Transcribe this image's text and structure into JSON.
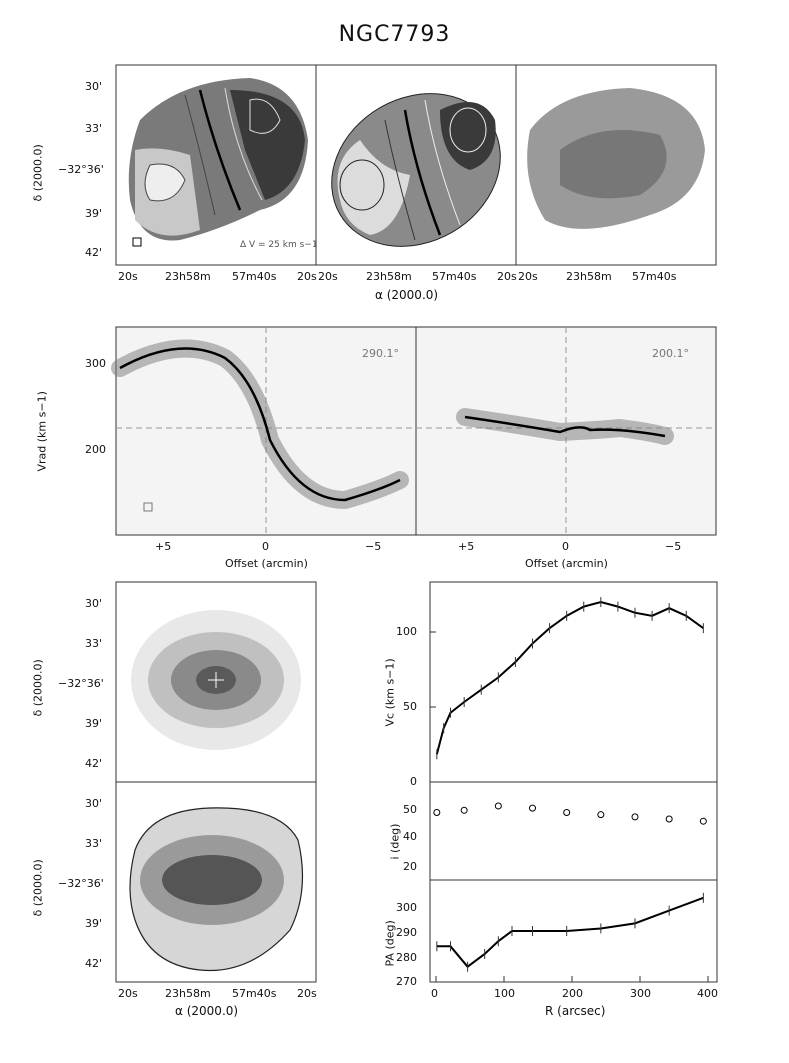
{
  "figure": {
    "title": "NGC7793"
  },
  "top_row": {
    "y_label": "δ (2000.0)",
    "x_label": "α (2000.0)",
    "y_ticks": [
      "30'",
      "33'",
      "−32°36'",
      "39'",
      "42'"
    ],
    "x_ticks_left": [
      "20s",
      "23h58m",
      "57m40s",
      "20s"
    ],
    "x_ticks_mid": [
      "20s",
      "23h58m",
      "57m40s",
      "20s"
    ],
    "x_ticks_right": [
      "20s",
      "23h58m",
      "57m40s"
    ],
    "contour_note": "Δ V = 25 km s−1"
  },
  "pv_row": {
    "y_label": "Vrad (km s−1)",
    "x_label_left": "Offset (arcmin)",
    "x_label_right": "Offset (arcmin)",
    "y_ticks": [
      "300",
      "200"
    ],
    "x_ticks": [
      "+5",
      "0",
      "−5"
    ],
    "angle_left": "290.1°",
    "angle_right": "200.1°"
  },
  "bottom_left": {
    "y_label_top": "δ (2000.0)",
    "y_label_bottom": "δ (2000.0)",
    "x_label": "α (2000.0)",
    "y_ticks": [
      "30'",
      "33'",
      "−32°36'",
      "39'",
      "42'"
    ],
    "x_ticks": [
      "20s",
      "23h58m",
      "57m40s",
      "20s"
    ]
  },
  "chart_data": [
    {
      "type": "line",
      "panel": "rotation-curve",
      "ylabel": "Vc (km s−1)",
      "xlim": [
        0,
        420
      ],
      "ylim": [
        0,
        130
      ],
      "y_ticks": [
        "0",
        "50",
        "100"
      ],
      "x": [
        10,
        20,
        30,
        50,
        75,
        100,
        125,
        150,
        175,
        200,
        225,
        250,
        275,
        300,
        325,
        350,
        375,
        400
      ],
      "y": [
        18,
        35,
        45,
        52,
        60,
        68,
        78,
        90,
        100,
        108,
        114,
        117,
        114,
        110,
        108,
        113,
        108,
        100
      ]
    },
    {
      "type": "scatter",
      "panel": "inclination",
      "ylabel": "i (deg)",
      "xlim": [
        0,
        420
      ],
      "ylim": [
        15,
        60
      ],
      "y_ticks": [
        "20",
        "40",
        "50"
      ],
      "x": [
        10,
        50,
        100,
        150,
        200,
        250,
        300,
        350,
        400
      ],
      "y": [
        46,
        47,
        49,
        48,
        46,
        45,
        44,
        43,
        42
      ]
    },
    {
      "type": "line",
      "panel": "position-angle",
      "ylabel": "PA (deg)",
      "xlabel": "R (arcsec)",
      "xlim": [
        0,
        420
      ],
      "ylim": [
        270,
        310
      ],
      "y_ticks": [
        "270",
        "280",
        "290",
        "300"
      ],
      "x_ticks": [
        "0",
        "100",
        "200",
        "300",
        "400"
      ],
      "x": [
        10,
        30,
        55,
        80,
        100,
        120,
        150,
        200,
        250,
        300,
        350,
        400
      ],
      "y": [
        284,
        284,
        276,
        281,
        286,
        290,
        290,
        290,
        291,
        293,
        298,
        303
      ]
    }
  ]
}
